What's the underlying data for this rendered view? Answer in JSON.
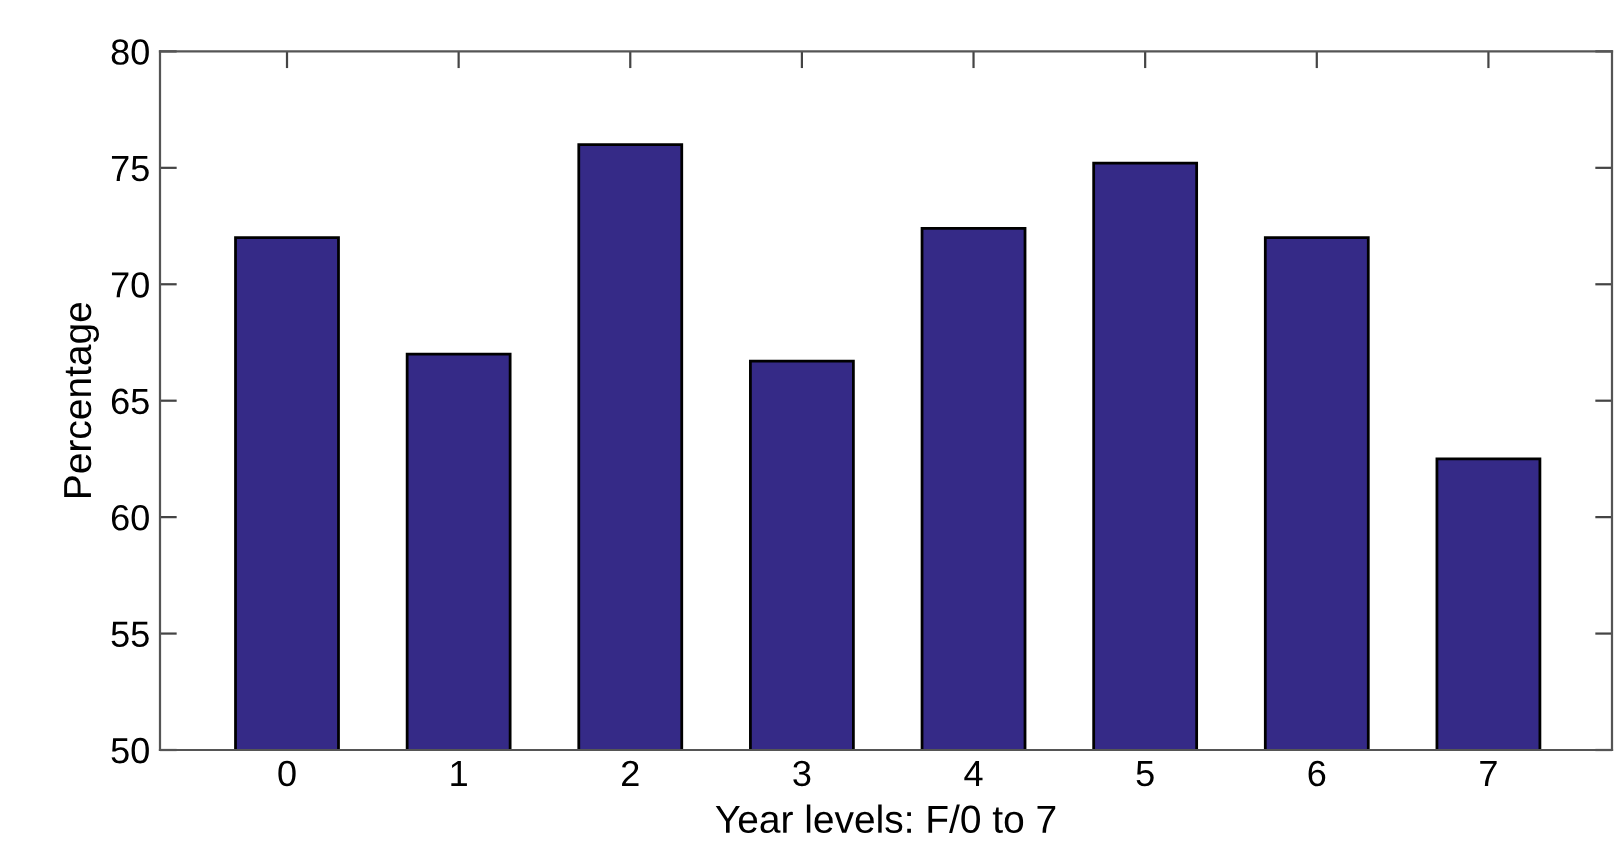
{
  "chart_data": {
    "type": "bar",
    "xlabel": "Year levels: F/0 to 7",
    "ylabel": "Percentage",
    "categories": [
      "0",
      "1",
      "2",
      "3",
      "4",
      "5",
      "6",
      "7"
    ],
    "values": [
      72.0,
      67.0,
      76.0,
      66.7,
      72.4,
      75.2,
      72.0,
      62.5
    ],
    "color": "#352a87",
    "ylim": [
      50,
      80
    ],
    "yticks": [
      50,
      55,
      60,
      65,
      70,
      75,
      80
    ],
    "grid": false
  }
}
